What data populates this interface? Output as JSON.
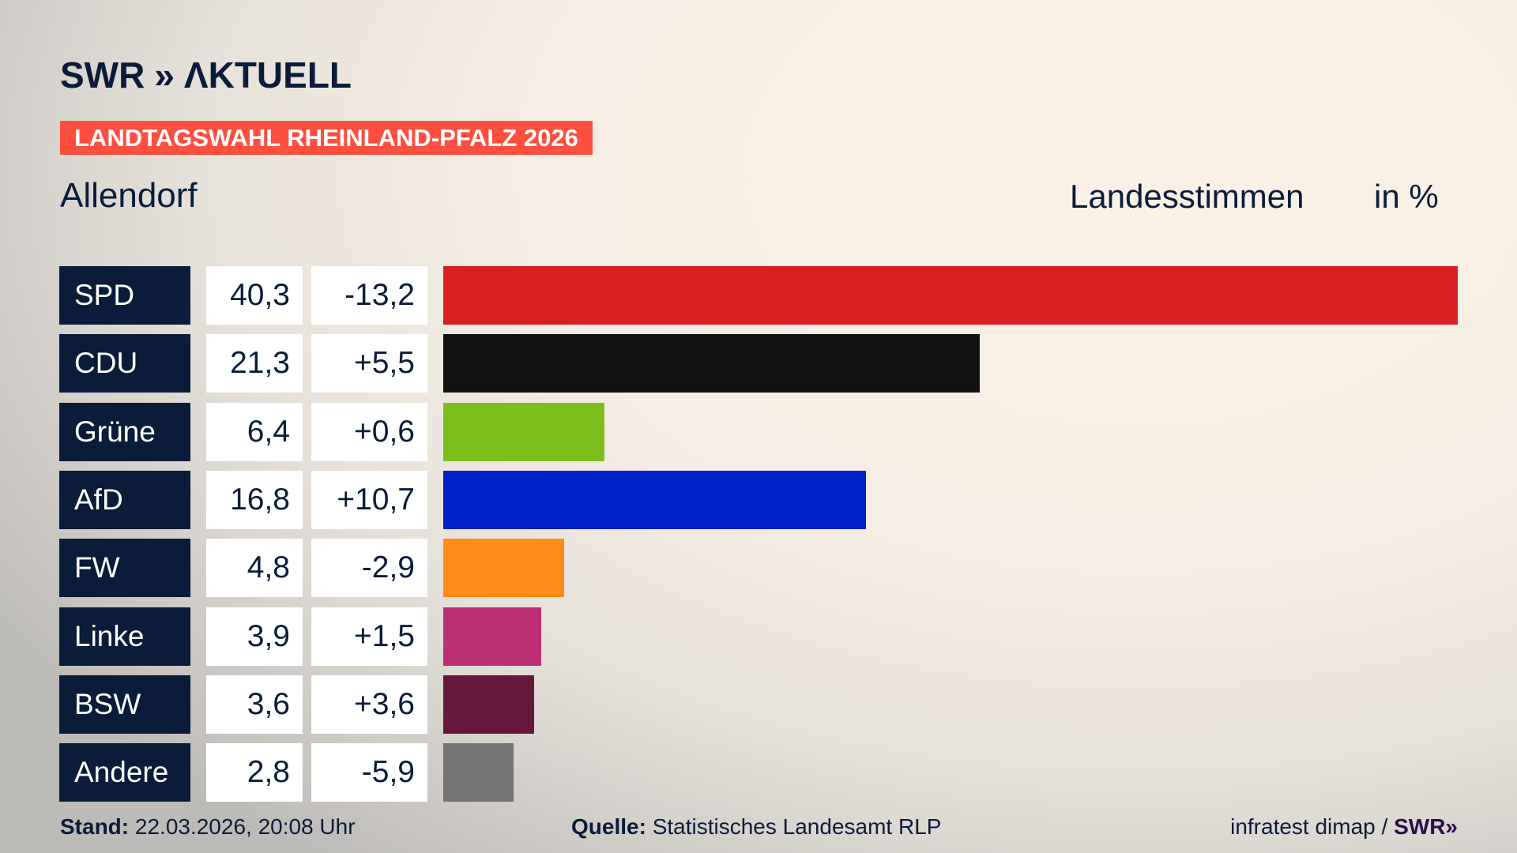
{
  "header": {
    "logo": "SWR AKTUELL",
    "logo_swr": "SWR",
    "logo_chevrons": "»",
    "logo_aktuell": "ΛKTUELL",
    "banner": "LANDTAGSWAHL RHEINLAND-PFALZ 2026",
    "place": "Allendorf",
    "vote_type": "Landesstimmen",
    "unit": "in %"
  },
  "chart_data": {
    "type": "bar",
    "orientation": "horizontal",
    "categories": [
      "SPD",
      "CDU",
      "Grüne",
      "AfD",
      "FW",
      "Linke",
      "BSW",
      "Andere"
    ],
    "values": [
      40.3,
      21.3,
      6.4,
      16.8,
      4.8,
      3.9,
      3.6,
      2.8
    ],
    "value_labels": [
      "40,3",
      "21,3",
      "6,4",
      "16,8",
      "4,8",
      "3,9",
      "3,6",
      "2,8"
    ],
    "diff_labels": [
      "-13,2",
      "+5,5",
      "+0,6",
      "+10,7",
      "-2,9",
      "+1,5",
      "+3,6",
      "-5,9"
    ],
    "diffs": [
      -13.2,
      5.5,
      0.6,
      10.7,
      -2.9,
      1.5,
      3.6,
      -5.9
    ],
    "colors": [
      "#d91f21",
      "#121212",
      "#7abf1c",
      "#0021c9",
      "#ff8c17",
      "#bd2f74",
      "#66173c",
      "#737373"
    ],
    "title": "",
    "xlabel": "",
    "ylabel": ""
  },
  "footer": {
    "stand_label": "Stand:",
    "stand_value": "22.03.2026, 20:08 Uhr",
    "source_label": "Quelle:",
    "source_value": "Statistisches Landesamt RLP",
    "credit": "infratest dimap /",
    "credit_logo": "SWR»"
  }
}
